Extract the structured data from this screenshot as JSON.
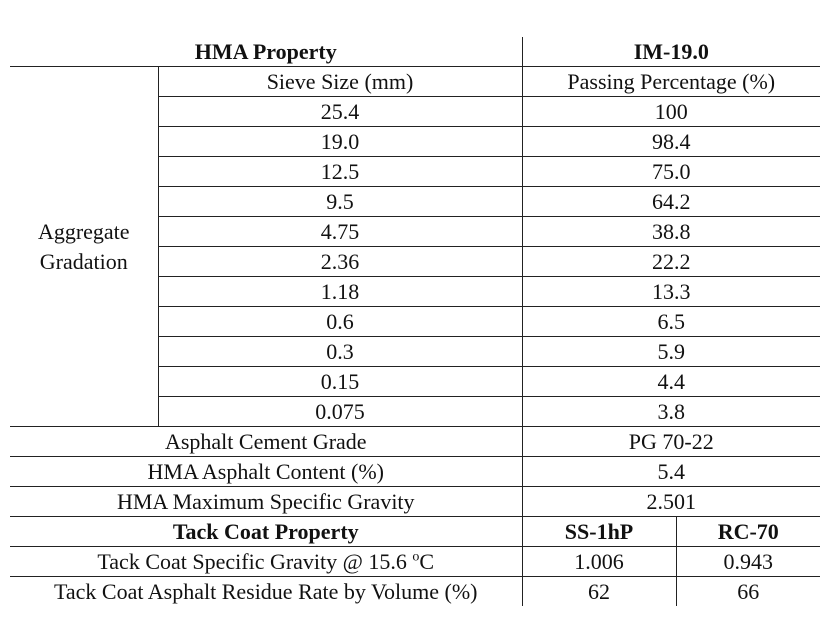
{
  "header": [
    "HMA Property",
    "IM-19.0"
  ],
  "gradation": {
    "label": [
      "Aggregate",
      "Gradation"
    ],
    "subheader": [
      "Sieve Size (mm)",
      "Passing Percentage (%)"
    ],
    "rows": [
      [
        "25.4",
        "100"
      ],
      [
        "19.0",
        "98.4"
      ],
      [
        "12.5",
        "75.0"
      ],
      [
        "9.5",
        "64.2"
      ],
      [
        "4.75",
        "38.8"
      ],
      [
        "2.36",
        "22.2"
      ],
      [
        "1.18",
        "13.3"
      ],
      [
        "0.6",
        "6.5"
      ],
      [
        "0.3",
        "5.9"
      ],
      [
        "0.15",
        "4.4"
      ],
      [
        "0.075",
        "3.8"
      ]
    ]
  },
  "properties": [
    [
      "Asphalt Cement Grade",
      "PG 70-22"
    ],
    [
      "HMA Asphalt Content (%)",
      "5.4"
    ],
    [
      "HMA Maximum Specific Gravity",
      "2.501"
    ]
  ],
  "tack_header": [
    "Tack Coat Property",
    "SS-1hP",
    "RC-70"
  ],
  "tack_rows": [
    {
      "label": {
        "text": "Tack Coat Specific Gravity @ 15.6 ",
        "sup": "o",
        "unit": "C"
      },
      "values": [
        "1.006",
        "0.943"
      ]
    },
    {
      "label": {
        "text": "Tack Coat Asphalt Residue Rate by Volume (%)"
      },
      "values": [
        "62",
        "66"
      ]
    }
  ]
}
